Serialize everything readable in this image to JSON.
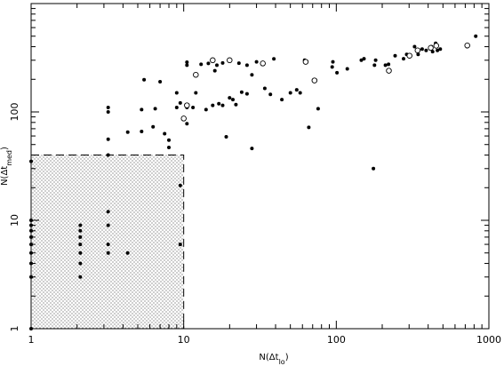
{
  "chart_data": {
    "type": "scatter",
    "x_scale": "log",
    "y_scale": "log",
    "xlim": [
      1,
      1000
    ],
    "ylim": [
      1,
      1000
    ],
    "x_ticks": [
      {
        "value": 1,
        "label": "1"
      },
      {
        "value": 10,
        "label": "10"
      },
      {
        "value": 100,
        "label": "100"
      },
      {
        "value": 1000,
        "label": "1000"
      }
    ],
    "y_ticks": [
      {
        "value": 1,
        "label": "1"
      },
      {
        "value": 10,
        "label": "10"
      },
      {
        "value": 100,
        "label": "100"
      }
    ],
    "x_label": {
      "prefix": "N(Δt",
      "sub": "lo",
      "suffix": ")"
    },
    "y_label": {
      "prefix": "N(Δt",
      "sub": "med",
      "suffix": ")"
    },
    "shaded_region": {
      "x": [
        1,
        10
      ],
      "y": [
        1,
        40
      ]
    },
    "grid": false,
    "series": [
      {
        "marker": "filled-circle",
        "points": [
          [
            1,
            35
          ],
          [
            1,
            10
          ],
          [
            1,
            9
          ],
          [
            1,
            8
          ],
          [
            1,
            7
          ],
          [
            1,
            6
          ],
          [
            1,
            5
          ],
          [
            1,
            4
          ],
          [
            1,
            3
          ],
          [
            1,
            1
          ],
          [
            2.1,
            9
          ],
          [
            2.1,
            8
          ],
          [
            2.1,
            7
          ],
          [
            2.1,
            6
          ],
          [
            2.1,
            5
          ],
          [
            2.1,
            4
          ],
          [
            2.1,
            3
          ],
          [
            3.2,
            12
          ],
          [
            3.2,
            9
          ],
          [
            3.2,
            6
          ],
          [
            3.2,
            5
          ],
          [
            4.3,
            5
          ],
          [
            9.5,
            6
          ],
          [
            9.5,
            21
          ],
          [
            3.2,
            40
          ],
          [
            3.2,
            56
          ],
          [
            3.2,
            100
          ],
          [
            3.2,
            110
          ],
          [
            4.3,
            65
          ],
          [
            5.3,
            66
          ],
          [
            5.3,
            105
          ],
          [
            6.3,
            73
          ],
          [
            6.5,
            107
          ],
          [
            7.5,
            63
          ],
          [
            8,
            55
          ],
          [
            8,
            47
          ],
          [
            9,
            110
          ],
          [
            9.5,
            121
          ],
          [
            10.5,
            78
          ],
          [
            10.5,
            110
          ],
          [
            10.5,
            288
          ],
          [
            10.5,
            270
          ],
          [
            5.5,
            198
          ],
          [
            7,
            190
          ],
          [
            9,
            150
          ],
          [
            11.5,
            110
          ],
          [
            12,
            150
          ],
          [
            14,
            105
          ],
          [
            15.5,
            115
          ],
          [
            17,
            119
          ],
          [
            18,
            115
          ],
          [
            19,
            59
          ],
          [
            20,
            135
          ],
          [
            21,
            130
          ],
          [
            22,
            117
          ],
          [
            24,
            152
          ],
          [
            26,
            147
          ],
          [
            28,
            46
          ],
          [
            13,
            275
          ],
          [
            14.5,
            280
          ],
          [
            16,
            240
          ],
          [
            16.5,
            270
          ],
          [
            18,
            283
          ],
          [
            23,
            282
          ],
          [
            26,
            270
          ],
          [
            28,
            220
          ],
          [
            30,
            290
          ],
          [
            34,
            165
          ],
          [
            37,
            145
          ],
          [
            39,
            309
          ],
          [
            44,
            130
          ],
          [
            50,
            150
          ],
          [
            55,
            160
          ],
          [
            58,
            150
          ],
          [
            66,
            72
          ],
          [
            76,
            107
          ],
          [
            62,
            300
          ],
          [
            94,
            260
          ],
          [
            95,
            290
          ],
          [
            101,
            230
          ],
          [
            118,
            250
          ],
          [
            175,
            30
          ],
          [
            146,
            300
          ],
          [
            152,
            310
          ],
          [
            178,
            270
          ],
          [
            181,
            300
          ],
          [
            210,
            270
          ],
          [
            220,
            275
          ],
          [
            243,
            330
          ],
          [
            276,
            310
          ],
          [
            289,
            340
          ],
          [
            326,
            400
          ],
          [
            344,
            340
          ],
          [
            365,
            380
          ],
          [
            388,
            370
          ],
          [
            420,
            400
          ],
          [
            428,
            360
          ],
          [
            448,
            430
          ],
          [
            453,
            410
          ],
          [
            460,
            370
          ],
          [
            480,
            380
          ],
          [
            720,
            400
          ],
          [
            820,
            500
          ]
        ]
      },
      {
        "marker": "open-circle",
        "points": [
          [
            10,
            87
          ],
          [
            10.5,
            115
          ],
          [
            12,
            220
          ],
          [
            15.5,
            300
          ],
          [
            20,
            300
          ],
          [
            33,
            280
          ],
          [
            63,
            290
          ],
          [
            72,
            195
          ],
          [
            221,
            240
          ],
          [
            302,
            330
          ],
          [
            341,
            370
          ],
          [
            416,
            390
          ],
          [
            452,
            408
          ],
          [
            722,
            410
          ]
        ]
      }
    ]
  }
}
